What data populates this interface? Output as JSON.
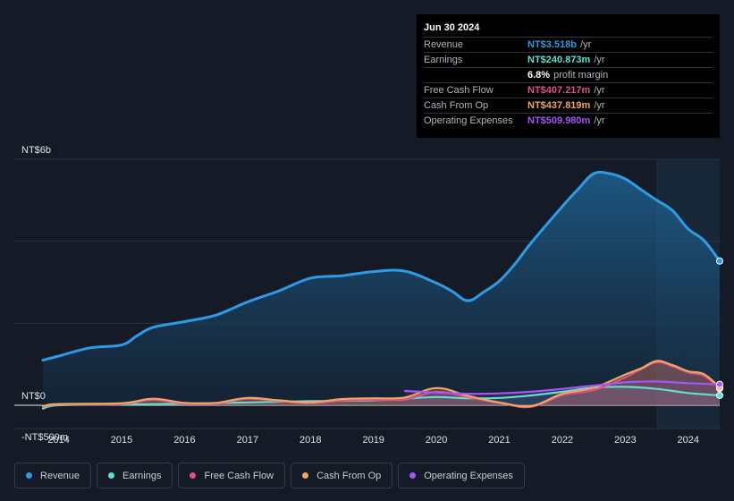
{
  "tooltip": {
    "date": "Jun 30 2024",
    "rows": [
      {
        "label": "Revenue",
        "value": "NT$3.518b",
        "unit": "/yr",
        "color": "#2e9be6"
      },
      {
        "label": "Earnings",
        "value": "NT$240.873m",
        "unit": "/yr",
        "color": "#5fe0d0"
      },
      {
        "label": "",
        "value": "6.8%",
        "unit": "profit margin",
        "color": "#ffffff"
      },
      {
        "label": "Free Cash Flow",
        "value": "NT$407.217m",
        "unit": "/yr",
        "color": "#e0508a"
      },
      {
        "label": "Cash From Op",
        "value": "NT$437.819m",
        "unit": "/yr",
        "color": "#f0a860"
      },
      {
        "label": "Operating Expenses",
        "value": "NT$509.980m",
        "unit": "/yr",
        "color": "#a855f7"
      }
    ]
  },
  "legend": [
    {
      "label": "Revenue",
      "color": "#2e9be6"
    },
    {
      "label": "Earnings",
      "color": "#5fe0d0"
    },
    {
      "label": "Free Cash Flow",
      "color": "#e0508a"
    },
    {
      "label": "Cash From Op",
      "color": "#f0a860"
    },
    {
      "label": "Operating Expenses",
      "color": "#a855f7"
    }
  ],
  "chart_data": {
    "type": "area",
    "title": "",
    "xlabel": "",
    "ylabel": "",
    "y_tick_labels": [
      "NT$6b",
      "NT$0",
      "-NT$500m"
    ],
    "x_tick_labels": [
      "2014",
      "2015",
      "2016",
      "2017",
      "2018",
      "2019",
      "2020",
      "2021",
      "2022",
      "2023",
      "2024"
    ],
    "ylim": [
      -500,
      6000
    ],
    "xlim": [
      2013.75,
      2024.5
    ],
    "series": [
      {
        "name": "Revenue",
        "color": "#2e9be6",
        "x": [
          2013.75,
          2014.0,
          2014.5,
          2015.0,
          2015.25,
          2015.5,
          2016.0,
          2016.5,
          2017.0,
          2017.5,
          2018.0,
          2018.5,
          2019.0,
          2019.5,
          2020.0,
          2020.25,
          2020.5,
          2020.75,
          2021.0,
          2021.25,
          2021.5,
          2022.0,
          2022.25,
          2022.5,
          2022.75,
          2023.0,
          2023.25,
          2023.5,
          2023.75,
          2024.0,
          2024.25,
          2024.5
        ],
        "values": [
          1100,
          1200,
          1400,
          1470,
          1700,
          1900,
          2040,
          2200,
          2520,
          2790,
          3100,
          3160,
          3260,
          3270,
          2980,
          2780,
          2550,
          2760,
          3030,
          3450,
          3950,
          4850,
          5270,
          5650,
          5650,
          5520,
          5260,
          5000,
          4750,
          4300,
          4020,
          3518
        ]
      },
      {
        "name": "Earnings",
        "color": "#5fe0d0",
        "x": [
          2013.75,
          2014.0,
          2015.0,
          2016.0,
          2017.0,
          2018.0,
          2019.0,
          2019.5,
          2020.0,
          2020.5,
          2021.0,
          2021.5,
          2022.0,
          2022.5,
          2023.0,
          2023.5,
          2024.0,
          2024.5
        ],
        "values": [
          -80,
          0,
          20,
          40,
          70,
          100,
          120,
          160,
          200,
          170,
          180,
          240,
          330,
          430,
          450,
          400,
          300,
          241
        ]
      },
      {
        "name": "Free Cash Flow",
        "color": "#e0508a",
        "x": [
          2013.75,
          2014.0,
          2015.0,
          2015.5,
          2016.0,
          2016.5,
          2017.0,
          2017.5,
          2018.0,
          2018.5,
          2019.0,
          2019.5,
          2020.0,
          2020.5,
          2021.0,
          2021.5,
          2022.0,
          2022.5,
          2023.0,
          2023.25,
          2023.5,
          2023.75,
          2024.0,
          2024.25,
          2024.5
        ],
        "values": [
          -40,
          20,
          30,
          130,
          40,
          40,
          160,
          100,
          50,
          110,
          130,
          140,
          330,
          200,
          60,
          -40,
          250,
          370,
          680,
          880,
          1050,
          950,
          800,
          720,
          407
        ]
      },
      {
        "name": "Cash From Op",
        "color": "#f0a860",
        "x": [
          2013.75,
          2014.0,
          2015.0,
          2015.5,
          2016.0,
          2016.5,
          2017.0,
          2017.5,
          2018.0,
          2018.5,
          2019.0,
          2019.5,
          2020.0,
          2020.5,
          2021.0,
          2021.5,
          2022.0,
          2022.5,
          2023.0,
          2023.25,
          2023.5,
          2023.75,
          2024.0,
          2024.25,
          2024.5
        ],
        "values": [
          -20,
          30,
          50,
          160,
          60,
          60,
          180,
          120,
          70,
          150,
          170,
          190,
          420,
          230,
          70,
          -20,
          280,
          430,
          750,
          900,
          1080,
          980,
          830,
          760,
          438
        ]
      },
      {
        "name": "Operating Expenses",
        "color": "#a855f7",
        "x": [
          2019.5,
          2020.0,
          2020.5,
          2021.0,
          2021.5,
          2022.0,
          2022.5,
          2023.0,
          2023.5,
          2024.0,
          2024.5
        ],
        "values": [
          350,
          310,
          280,
          290,
          330,
          400,
          480,
          560,
          580,
          540,
          510
        ]
      }
    ]
  }
}
